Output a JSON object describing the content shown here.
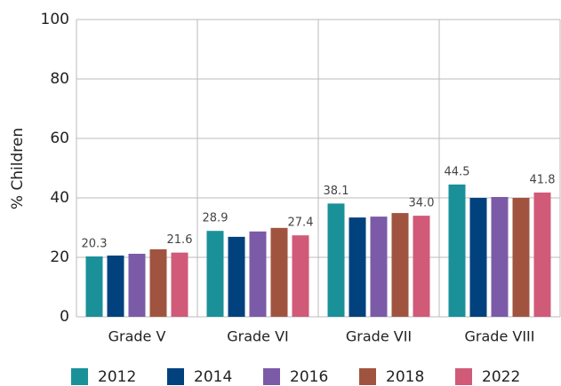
{
  "chart_data": {
    "type": "bar",
    "y_label": "% Children",
    "categories": [
      "Grade V",
      "Grade VI",
      "Grade VII",
      "Grade VIII"
    ],
    "series": [
      {
        "name": "2012",
        "color": "#1a9199",
        "values": [
          20.3,
          28.9,
          38.1,
          44.5
        ],
        "value_labels": [
          "20.3",
          "28.9",
          "38.1",
          "44.5"
        ]
      },
      {
        "name": "2014",
        "color": "#00417e",
        "values": [
          20.6,
          26.9,
          33.4,
          40.0
        ]
      },
      {
        "name": "2016",
        "color": "#7b5ba7",
        "values": [
          21.2,
          28.7,
          33.7,
          40.3
        ]
      },
      {
        "name": "2018",
        "color": "#a0543f",
        "values": [
          22.7,
          29.9,
          34.9,
          40.0
        ]
      },
      {
        "name": "2022",
        "color": "#d05a78",
        "values": [
          21.6,
          27.4,
          34.0,
          41.8
        ],
        "value_labels": [
          "21.6",
          "27.4",
          "34.0",
          "41.8"
        ]
      }
    ],
    "ylim": [
      0,
      100
    ],
    "yticks": [
      0,
      20,
      40,
      60,
      80,
      100
    ],
    "grid": true,
    "legend": "bottom"
  }
}
